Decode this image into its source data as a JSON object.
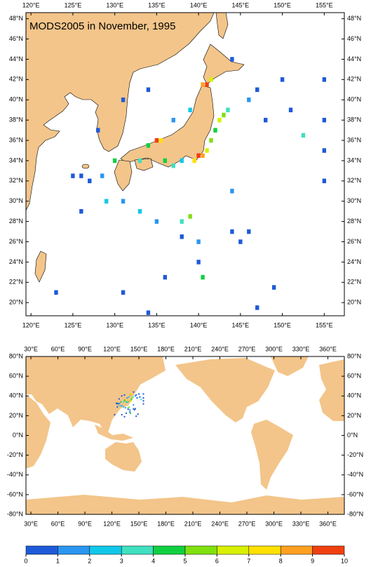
{
  "chart_data": {
    "type": "map",
    "title": "MODS2005 in November, 1995",
    "cells": {
      "lon": [
        140,
        140.5,
        139.5,
        141,
        141.5,
        142,
        142.5,
        143,
        143.5,
        141,
        140.5,
        141.5,
        135,
        135.5,
        134,
        133,
        136,
        137,
        138,
        130,
        128.5,
        125,
        126,
        127,
        129,
        131,
        133,
        135,
        138,
        139,
        140,
        140,
        140.5,
        138,
        144,
        145,
        146,
        146,
        147,
        148,
        151,
        152.5,
        155,
        155,
        155,
        155,
        144,
        150,
        123,
        131,
        126,
        134,
        131,
        128,
        137,
        139,
        144,
        136,
        147,
        149,
        134
      ],
      "lat": [
        34.5,
        34.5,
        34,
        35,
        36,
        37,
        38,
        38.5,
        39,
        41.5,
        41.5,
        42,
        36,
        36,
        35.5,
        34,
        34,
        33.5,
        34,
        34,
        32.5,
        32.5,
        32.5,
        32,
        30,
        30,
        29,
        28,
        28,
        28.5,
        26,
        24,
        22.5,
        26.5,
        27,
        26,
        27,
        40,
        41,
        38,
        39,
        36.5,
        38,
        35,
        32,
        42,
        44,
        42,
        21,
        21,
        29,
        41,
        40,
        37,
        38,
        39,
        31,
        22.5,
        19.5,
        21.5,
        19
      ],
      "values": [
        9.5,
        8.5,
        7,
        6,
        5,
        4.5,
        6,
        5,
        3.5,
        9.5,
        8,
        6,
        9,
        7,
        4,
        3,
        4.5,
        3,
        2.5,
        4,
        1.5,
        0.5,
        0.5,
        0.5,
        2,
        1.5,
        2.5,
        1.5,
        3,
        5,
        1.5,
        0.8,
        4,
        0.7,
        0.5,
        0.5,
        0.5,
        1,
        0.5,
        0.5,
        0.5,
        3,
        0.5,
        0.5,
        0.5,
        0.5,
        0.5,
        0.5,
        0.5,
        0.5,
        0.5,
        0.8,
        0.5,
        0.7,
        1.5,
        2,
        1,
        0.5,
        0.5,
        0.5,
        0.5
      ]
    },
    "panels": [
      {
        "xlim": [
          119.4,
          157.4
        ],
        "ylim": [
          18.7,
          48.6
        ],
        "xticks": [
          {
            "value": 120,
            "label": "120°E"
          },
          {
            "value": 125,
            "label": "125°E"
          },
          {
            "value": 130,
            "label": "130°E"
          },
          {
            "value": 135,
            "label": "135°E"
          },
          {
            "value": 140,
            "label": "140°E"
          },
          {
            "value": 145,
            "label": "145°E"
          },
          {
            "value": 150,
            "label": "150°E"
          },
          {
            "value": 155,
            "label": "155°E"
          }
        ],
        "yticks": [
          {
            "value": 20,
            "label": "20°N"
          },
          {
            "value": 22,
            "label": "22°N"
          },
          {
            "value": 24,
            "label": "24°N"
          },
          {
            "value": 26,
            "label": "26°N"
          },
          {
            "value": 28,
            "label": "28°N"
          },
          {
            "value": 30,
            "label": "30°N"
          },
          {
            "value": 32,
            "label": "32°N"
          },
          {
            "value": 34,
            "label": "34°N"
          },
          {
            "value": 36,
            "label": "36°N"
          },
          {
            "value": 38,
            "label": "38°N"
          },
          {
            "value": 40,
            "label": "40°N"
          },
          {
            "value": 42,
            "label": "42°N"
          },
          {
            "value": 44,
            "label": "44°N"
          },
          {
            "value": 46,
            "label": "46°N"
          },
          {
            "value": 48,
            "label": "48°N"
          }
        ]
      },
      {
        "xlim": [
          24.5,
          378.3
        ],
        "ylim": [
          -80,
          80
        ],
        "xticks": [
          {
            "value": 30,
            "label": "30°E"
          },
          {
            "value": 60,
            "label": "60°E"
          },
          {
            "value": 90,
            "label": "90°E"
          },
          {
            "value": 120,
            "label": "120°E"
          },
          {
            "value": 150,
            "label": "150°E"
          },
          {
            "value": 180,
            "label": "180°E"
          },
          {
            "value": 210,
            "label": "210°E"
          },
          {
            "value": 240,
            "label": "240°E"
          },
          {
            "value": 270,
            "label": "270°E"
          },
          {
            "value": 300,
            "label": "300°E"
          },
          {
            "value": 330,
            "label": "330°E"
          },
          {
            "value": 360,
            "label": "360°E"
          }
        ],
        "yticks": [
          {
            "value": -80,
            "label": "-80°N"
          },
          {
            "value": -60,
            "label": "-60°N"
          },
          {
            "value": -40,
            "label": "-40°N"
          },
          {
            "value": -20,
            "label": "-20°N"
          },
          {
            "value": 0,
            "label": "0°N"
          },
          {
            "value": 20,
            "label": "20°N"
          },
          {
            "value": 40,
            "label": "40°N"
          },
          {
            "value": 60,
            "label": "60°N"
          },
          {
            "value": 80,
            "label": "80°N"
          }
        ]
      }
    ],
    "colorbar": {
      "ticks": [
        0,
        1,
        2,
        3,
        4,
        5,
        6,
        7,
        8,
        9,
        10
      ],
      "colors": [
        "#1e5ad8",
        "#2a96f0",
        "#10c8e8",
        "#40e0c0",
        "#10d040",
        "#80e010",
        "#d8f000",
        "#ffe000",
        "#ffa020",
        "#f04010"
      ]
    }
  }
}
